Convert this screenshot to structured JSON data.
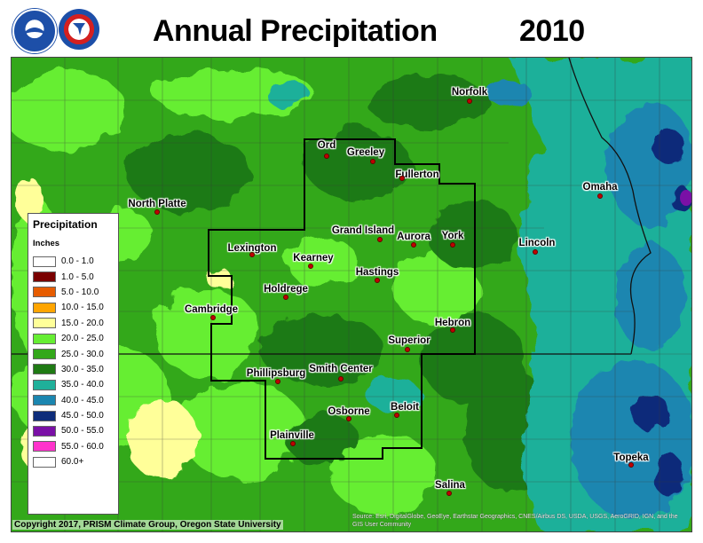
{
  "header": {
    "title": "Annual Precipitation",
    "year": "2010"
  },
  "logos": [
    {
      "name": "noaa-logo",
      "text": "NOAA"
    },
    {
      "name": "nws-logo",
      "text": "NATIONAL WEATHER SERVICE"
    }
  ],
  "legend": {
    "title": "Precipitation",
    "units": "Inches",
    "items": [
      {
        "label": "0.0 - 1.0",
        "color": "#ffffff"
      },
      {
        "label": "1.0 - 5.0",
        "color": "#7a0000"
      },
      {
        "label": "5.0 - 10.0",
        "color": "#e65c00"
      },
      {
        "label": "10.0 - 15.0",
        "color": "#ffa500"
      },
      {
        "label": "15.0 - 20.0",
        "color": "#ffff99"
      },
      {
        "label": "20.0 - 25.0",
        "color": "#66ee33"
      },
      {
        "label": "25.0 - 30.0",
        "color": "#33a81a"
      },
      {
        "label": "30.0 - 35.0",
        "color": "#1f7a14"
      },
      {
        "label": "35.0 - 40.0",
        "color": "#1fb09a"
      },
      {
        "label": "40.0 - 45.0",
        "color": "#1b86b0"
      },
      {
        "label": "45.0 - 50.0",
        "color": "#0d2c7a"
      },
      {
        "label": "50.0 - 55.0",
        "color": "#7a10a6"
      },
      {
        "label": "55.0 - 60.0",
        "color": "#ff33cc"
      },
      {
        "label": "60.0+",
        "color": "#ffffff"
      }
    ]
  },
  "cities": [
    {
      "name": "Norfolk"
    },
    {
      "name": "Ord"
    },
    {
      "name": "Greeley"
    },
    {
      "name": "Fullerton"
    },
    {
      "name": "Omaha"
    },
    {
      "name": "North Platte"
    },
    {
      "name": "Grand Island"
    },
    {
      "name": "Aurora"
    },
    {
      "name": "York"
    },
    {
      "name": "Lincoln"
    },
    {
      "name": "Lexington"
    },
    {
      "name": "Kearney"
    },
    {
      "name": "Hastings"
    },
    {
      "name": "Holdrege"
    },
    {
      "name": "Cambridge"
    },
    {
      "name": "Hebron"
    },
    {
      "name": "Superior"
    },
    {
      "name": "Phillipsburg"
    },
    {
      "name": "Smith Center"
    },
    {
      "name": "Osborne"
    },
    {
      "name": "Beloit"
    },
    {
      "name": "Plainville"
    },
    {
      "name": "Topeka"
    },
    {
      "name": "Salina"
    }
  ],
  "footer": {
    "copyright": "Copyright 2017, PRISM Climate Group, Oregon State University",
    "attribution": "Source: Esri, DigitalGlobe, GeoEye, Earthstar Geographics, CNES/Airbus DS, USDA, USGS, AeroGRID, IGN, and the GIS User Community"
  }
}
